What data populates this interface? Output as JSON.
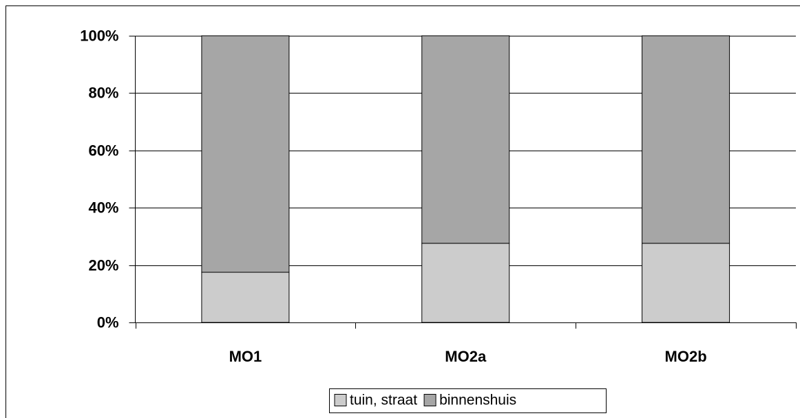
{
  "chart_data": {
    "type": "stacked_bar",
    "categories": [
      "MO1",
      "MO2a",
      "MO2b"
    ],
    "series": [
      {
        "name": "tuin, straat",
        "color": "#cccccc",
        "values": [
          17.5,
          27.6,
          27.6
        ]
      },
      {
        "name": "binnenshuis",
        "color": "#a6a6a6",
        "values": [
          82.5,
          72.4,
          72.4
        ]
      }
    ],
    "ylim": [
      0,
      100
    ],
    "yticks": [
      {
        "value": 0,
        "label": "0%"
      },
      {
        "value": 20,
        "label": "20%"
      },
      {
        "value": 40,
        "label": "40%"
      },
      {
        "value": 60,
        "label": "60%"
      },
      {
        "value": 80,
        "label": "80%"
      },
      {
        "value": 100,
        "label": "100%"
      }
    ],
    "grid": true,
    "legend": "bottom"
  }
}
